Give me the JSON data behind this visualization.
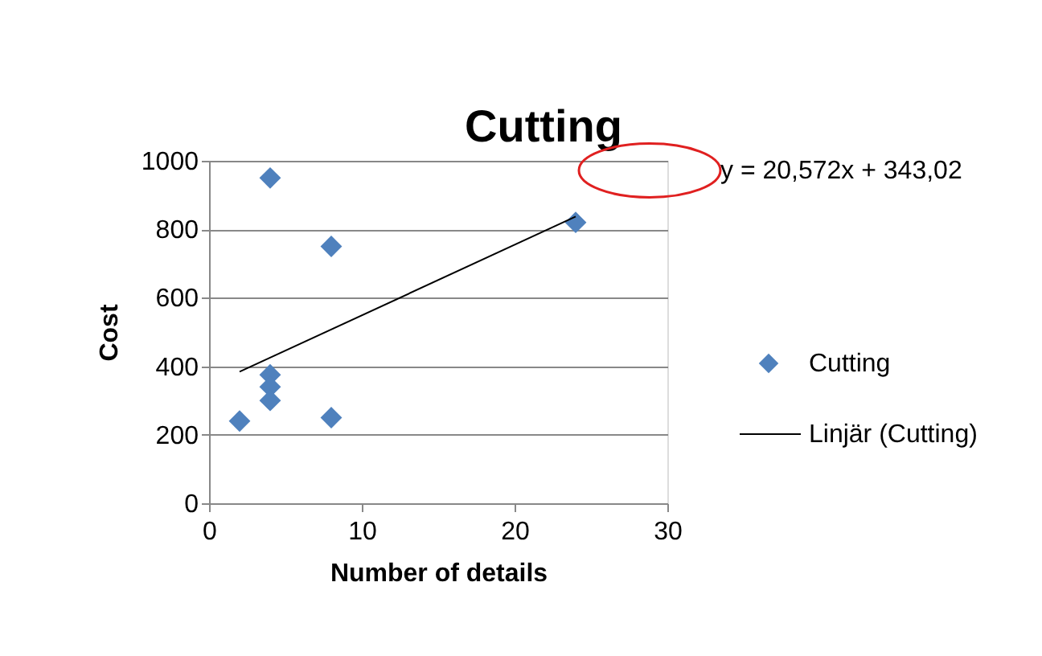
{
  "chart_data": {
    "type": "scatter",
    "title": "Cutting",
    "xlabel": "Number of details",
    "ylabel": "Cost",
    "annotations": [
      "y = 20,572x + 343,02"
    ],
    "series": [
      {
        "name": "Cutting",
        "type": "scatter",
        "color": "#4f81bd",
        "marker": "diamond",
        "x": [
          2,
          4,
          4,
          4,
          4,
          8,
          8,
          24
        ],
        "values": [
          240,
          950,
          375,
          340,
          300,
          750,
          250,
          820
        ]
      },
      {
        "name": "Linjär (Cutting)",
        "type": "line",
        "color": "#000000",
        "x": [
          2,
          24
        ],
        "values": [
          384,
          837
        ]
      }
    ],
    "xlim": [
      0,
      30
    ],
    "xticks": [
      0,
      10,
      20,
      30
    ],
    "ylim": [
      0,
      1000
    ],
    "yticks": [
      0,
      200,
      400,
      600,
      800,
      1000
    ],
    "grid": "y",
    "legend": "right"
  }
}
